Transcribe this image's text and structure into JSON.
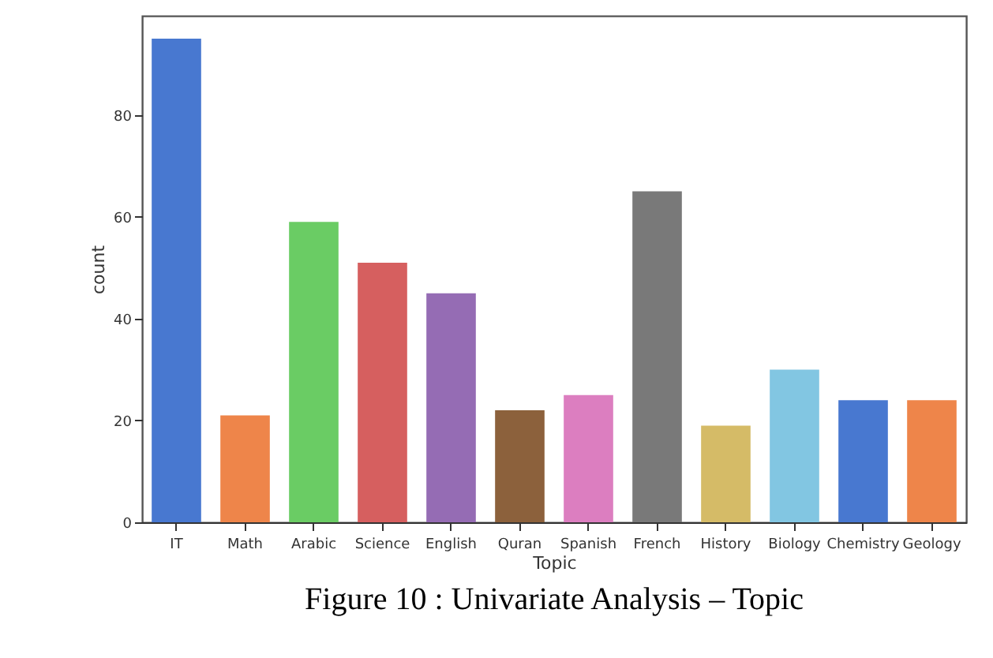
{
  "chart_data": {
    "type": "bar",
    "xlabel": "Topic",
    "ylabel": "count",
    "categories": [
      "IT",
      "Math",
      "Arabic",
      "Science",
      "English",
      "Quran",
      "Spanish",
      "French",
      "History",
      "Biology",
      "Chemistry",
      "Geology"
    ],
    "values": [
      95,
      21,
      59,
      51,
      45,
      22,
      25,
      65,
      19,
      30,
      24,
      24
    ],
    "colors": [
      "#4878d0",
      "#ee854a",
      "#6acc64",
      "#d65f5f",
      "#956cb4",
      "#8c613c",
      "#dc7ec0",
      "#797979",
      "#d5bb67",
      "#82c6e2",
      "#4878d0",
      "#ee854a"
    ],
    "ylim": [
      0,
      99.5
    ],
    "yticks": [
      0,
      20,
      40,
      60,
      80
    ],
    "grid": false,
    "legend": false,
    "annotations": [
      "Figure 10 : Univariate Analysis – Topic"
    ]
  }
}
